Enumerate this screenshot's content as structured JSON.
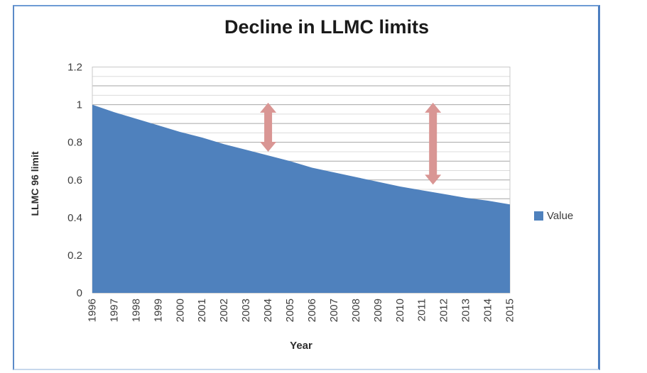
{
  "window": {
    "background": "#ffffff",
    "frame_border_color": "#6d9bd4"
  },
  "chart_data": {
    "type": "area",
    "title": "Decline in LLMC limits",
    "xlabel": "Year",
    "ylabel": "LLMC 96 limit",
    "categories": [
      "1996",
      "1997",
      "1998",
      "1999",
      "2000",
      "2001",
      "2002",
      "2003",
      "2004",
      "2005",
      "2006",
      "2007",
      "2008",
      "2009",
      "2010",
      "2011",
      "2012",
      "2013",
      "2014",
      "2015"
    ],
    "series": [
      {
        "name": "Value",
        "color": "#4f81bd",
        "values": [
          1.0,
          0.96,
          0.925,
          0.89,
          0.855,
          0.825,
          0.79,
          0.76,
          0.73,
          0.7,
          0.665,
          0.64,
          0.615,
          0.59,
          0.565,
          0.545,
          0.525,
          0.505,
          0.49,
          0.47
        ]
      }
    ],
    "ylim": [
      0,
      1.2
    ],
    "y_major_unit": 0.2,
    "y_minor_unit": 0.05,
    "y_tick_labels": [
      "0",
      "0.2",
      "0.4",
      "0.6",
      "0.8",
      "1",
      "1.2"
    ],
    "grid": "horizontal minor+major",
    "gridline_major_color": "#a6a6a6",
    "gridline_minor_color": "#dcdcdc",
    "plot_border_color": "#c9c9c9",
    "tick_label_color": "#3d3d3d",
    "legend_position": "right",
    "annotations": [
      {
        "type": "double-arrow",
        "color": "#d99694",
        "x_index": 8,
        "x_category": "2004",
        "value_from": 0.75,
        "value_to": 1.01
      },
      {
        "type": "double-arrow",
        "color": "#d99694",
        "x_index": 15.5,
        "x_category": "2011-2012",
        "value_from": 0.575,
        "value_to": 1.01
      }
    ]
  }
}
